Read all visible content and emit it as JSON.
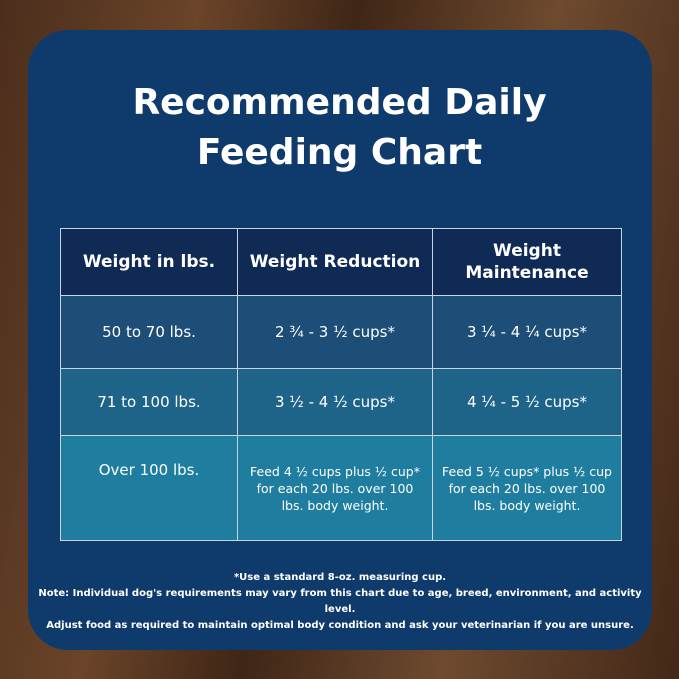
{
  "header": {
    "title": [
      "Recommended Daily",
      "Feeding Chart"
    ]
  },
  "table": {
    "columns": [
      "Weight in lbs.",
      "Weight Reduction",
      "Weight Maintenance"
    ],
    "rows": [
      [
        "50 to 70 lbs.",
        "2 ¾ - 3 ½ cups*",
        "3 ¼ - 4 ¼ cups*"
      ],
      [
        "71 to 100 lbs.",
        "3 ½ - 4 ½ cups*",
        "4 ¼ - 5 ½ cups*"
      ],
      [
        "Over 100 lbs.",
        "Feed 4 ½ cups plus ½ cup* for each 20 lbs. over 100 lbs. body weight.",
        "Feed 5 ½ cups* plus ½ cup for each 20 lbs. over 100 lbs. body weight."
      ]
    ]
  },
  "notes": [
    "*Use a standard 8-oz. measuring cup.",
    "Note: Individual dog's requirements may vary from this chart due to age, breed, environment, and activity level.",
    "Adjust food as required to maintain optimal body condition and ask your veterinarian if you are unsure."
  ]
}
